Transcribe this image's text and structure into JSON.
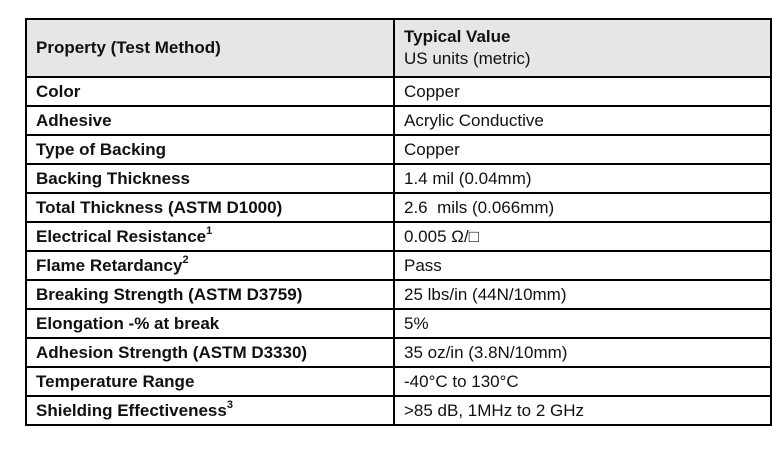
{
  "table": {
    "style": {
      "header_bg": "#e6e6e6",
      "border_color": "#000000"
    },
    "header": {
      "property_column": "Property (Test Method)",
      "value_column_line1": "Typical Value",
      "value_column_line2": "US units (metric)"
    },
    "rows": [
      {
        "property": "Color",
        "superscript": "",
        "value": "Copper"
      },
      {
        "property": "Adhesive",
        "superscript": "",
        "value": "Acrylic Conductive"
      },
      {
        "property": "Type of Backing",
        "superscript": "",
        "value": "Copper"
      },
      {
        "property": "Backing Thickness",
        "superscript": "",
        "value": "1.4 mil (0.04mm)"
      },
      {
        "property": "Total Thickness (ASTM D1000)",
        "superscript": "",
        "value": "2.6  mils (0.066mm)"
      },
      {
        "property": "Electrical Resistance",
        "superscript": "1",
        "value": "0.005 Ω/□"
      },
      {
        "property": "Flame Retardancy",
        "superscript": "2",
        "value": "Pass"
      },
      {
        "property": "Breaking Strength (ASTM D3759)",
        "superscript": "",
        "value": "25 lbs/in (44N/10mm)"
      },
      {
        "property": "Elongation -% at break",
        "superscript": "",
        "value": "5%"
      },
      {
        "property": "Adhesion Strength (ASTM D3330)",
        "superscript": "",
        "value": "35 oz/in (3.8N/10mm)"
      },
      {
        "property": "Temperature Range",
        "superscript": "",
        "value": "-40°C to 130°C"
      },
      {
        "property": "Shielding Effectiveness",
        "superscript": "3",
        "value": ">85 dB, 1MHz to 2 GHz"
      }
    ]
  }
}
